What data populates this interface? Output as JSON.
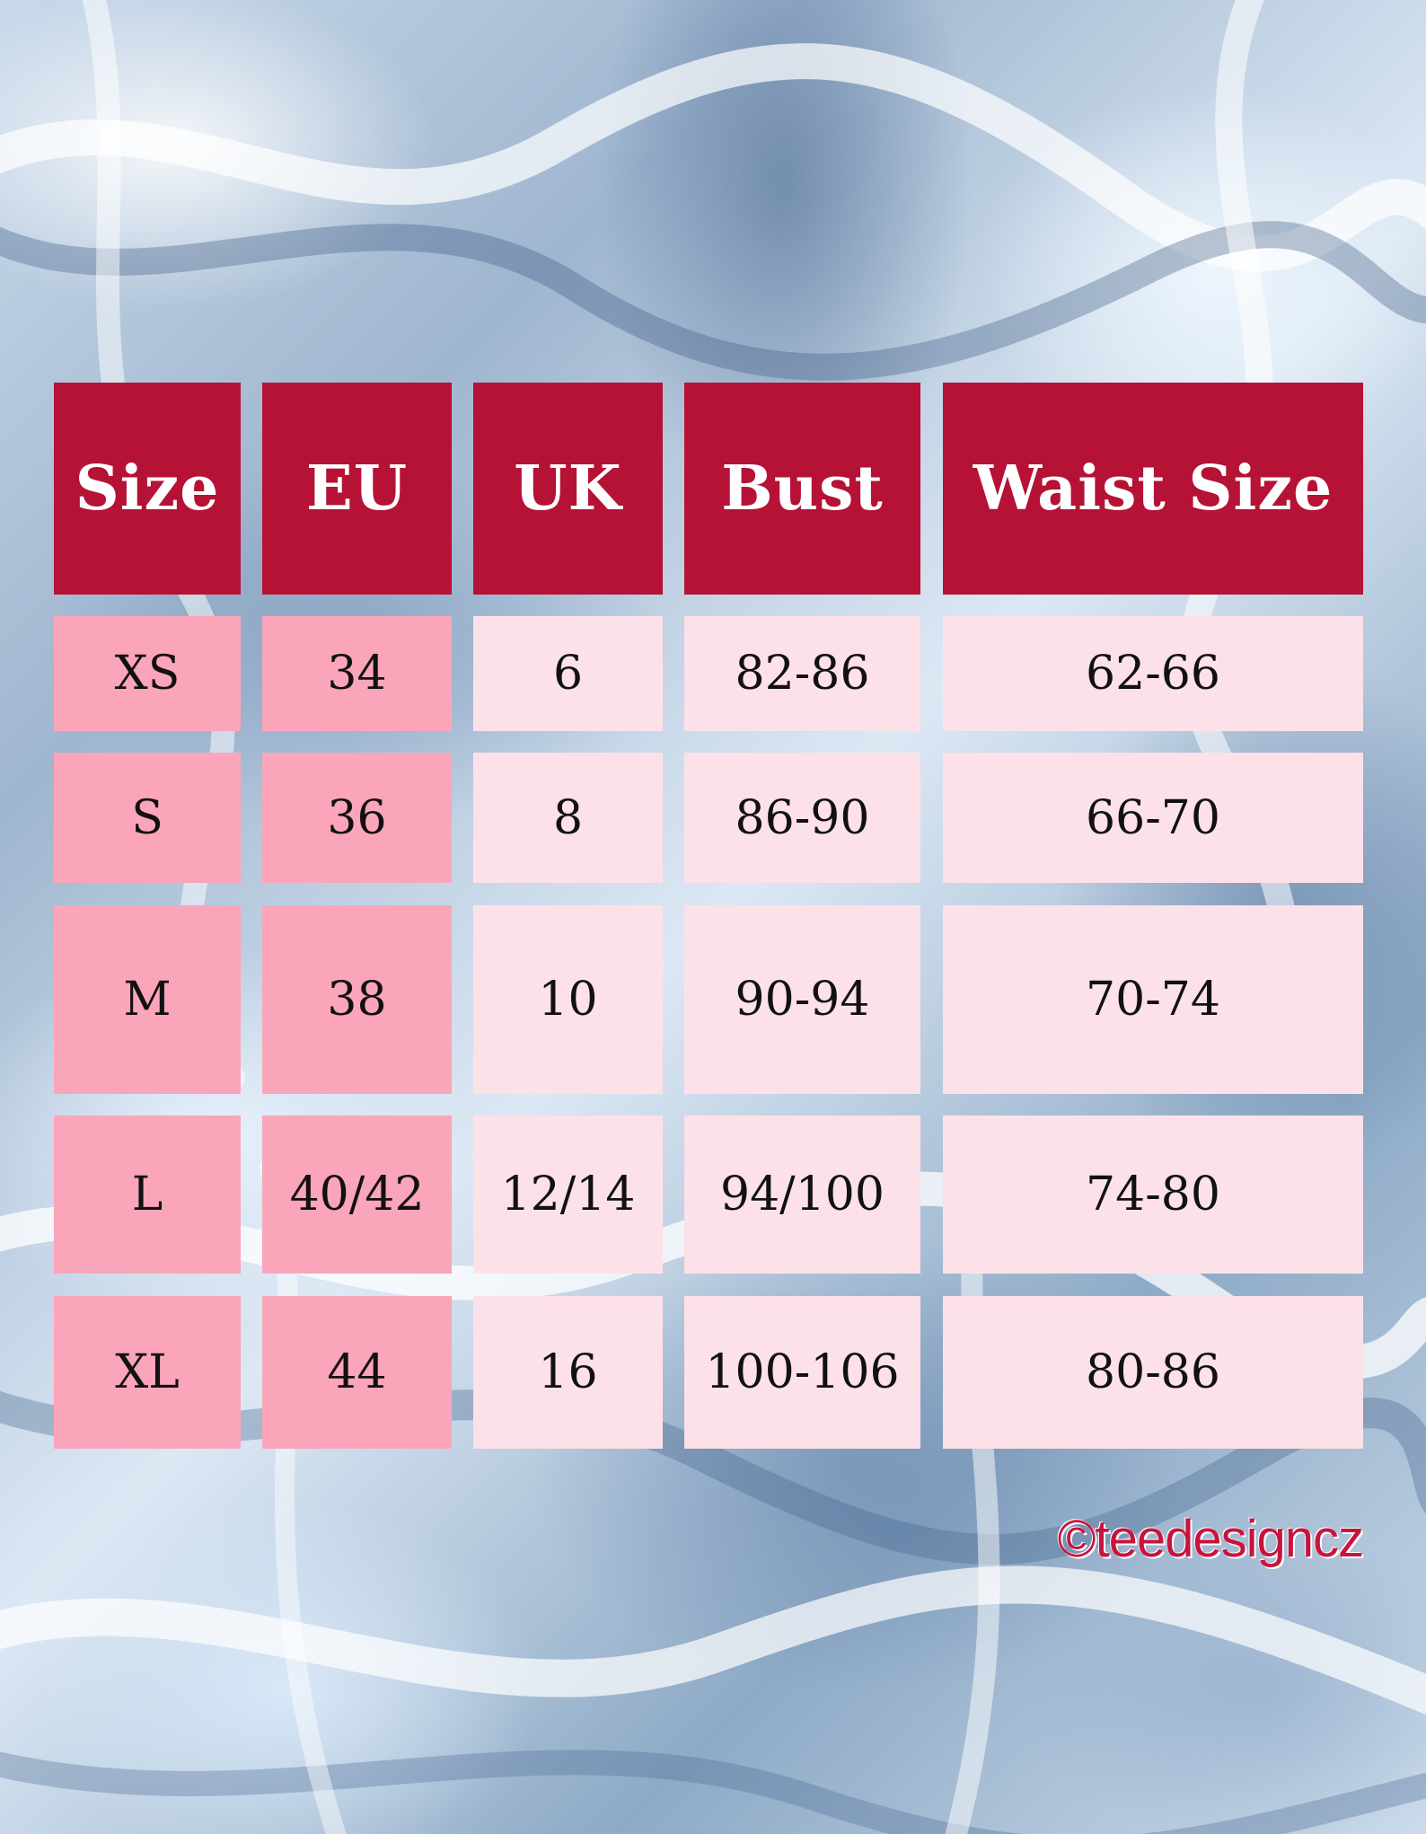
{
  "headers": {
    "size": "Size",
    "eu": "EU",
    "uk": "UK",
    "bust": "Bust",
    "waist": "Waist Size"
  },
  "rows": [
    {
      "size": "XS",
      "eu": "34",
      "uk": "6",
      "bust": "82-86",
      "waist": "62-66"
    },
    {
      "size": "S",
      "eu": "36",
      "uk": "8",
      "bust": "86-90",
      "waist": "66-70"
    },
    {
      "size": "M",
      "eu": "38",
      "uk": "10",
      "bust": "90-94",
      "waist": "70-74"
    },
    {
      "size": "L",
      "eu": "40/42",
      "uk": "12/14",
      "bust": "94/100",
      "waist": "74-80"
    },
    {
      "size": "XL",
      "eu": "44",
      "uk": "16",
      "bust": "100-106",
      "waist": "80-86"
    }
  ],
  "copyright": "©teedesigncz",
  "colors": {
    "header_bg": "#b51236",
    "size_eu_bg": "#fba5bb",
    "other_bg": "#fde1e9",
    "copyright": "#c8143c"
  }
}
